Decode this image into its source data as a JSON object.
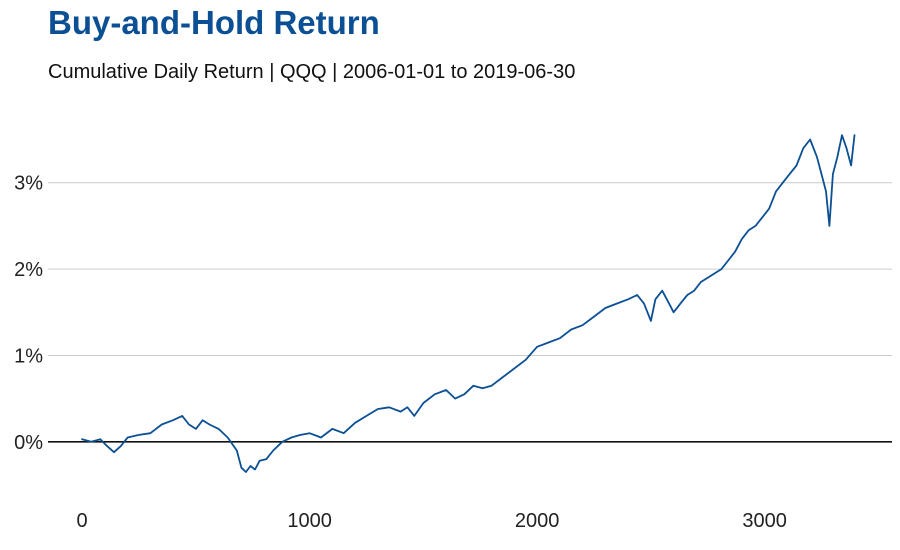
{
  "header": {
    "title": "Buy-and-Hold Return",
    "subtitle": "Cumulative Daily Return | QQQ | 2006-01-01 to 2019-06-30"
  },
  "colors": {
    "title": "#0b4f94",
    "line": "#0b4f94",
    "grid": "#cccccc",
    "zero_line": "#111111"
  },
  "chart_data": {
    "type": "line",
    "title": "Buy-and-Hold Return",
    "subtitle": "Cumulative Daily Return | QQQ | 2006-01-01 to 2019-06-30",
    "xlabel": "",
    "ylabel": "",
    "xlim": [
      -150,
      3560
    ],
    "ylim": [
      -0.5,
      3.9
    ],
    "x_ticks": [
      0,
      1000,
      2000,
      3000
    ],
    "x_tick_labels": [
      "0",
      "1000",
      "2000",
      "3000"
    ],
    "y_ticks": [
      0,
      1,
      2,
      3
    ],
    "y_tick_labels": [
      "0%",
      "1%",
      "2%",
      "3%"
    ],
    "grid": "horizontal",
    "series": [
      {
        "x": [
          0,
          40,
          80,
          110,
          140,
          170,
          200,
          250,
          300,
          350,
          400,
          440,
          470,
          500,
          530,
          560,
          600,
          640,
          680,
          700,
          720,
          740,
          760,
          780,
          810,
          840,
          880,
          920,
          960,
          1000,
          1050,
          1100,
          1150,
          1200,
          1250,
          1300,
          1350,
          1400,
          1430,
          1460,
          1500,
          1550,
          1600,
          1640,
          1680,
          1720,
          1760,
          1800,
          1850,
          1900,
          1950,
          2000,
          2050,
          2100,
          2150,
          2200,
          2250,
          2300,
          2350,
          2400,
          2440,
          2470,
          2500,
          2520,
          2550,
          2580,
          2600,
          2630,
          2660,
          2690,
          2720,
          2750,
          2780,
          2810,
          2840,
          2870,
          2900,
          2930,
          2960,
          2990,
          3020,
          3050,
          3080,
          3110,
          3140,
          3170,
          3200,
          3230,
          3250,
          3270,
          3285,
          3300,
          3320,
          3340,
          3360,
          3380,
          3395
        ],
        "values": [
          0.03,
          0.0,
          0.03,
          -0.05,
          -0.12,
          -0.05,
          0.05,
          0.08,
          0.1,
          0.2,
          0.25,
          0.3,
          0.2,
          0.15,
          0.25,
          0.2,
          0.15,
          0.05,
          -0.1,
          -0.3,
          -0.35,
          -0.28,
          -0.32,
          -0.22,
          -0.2,
          -0.1,
          0.0,
          0.05,
          0.08,
          0.1,
          0.05,
          0.15,
          0.1,
          0.22,
          0.3,
          0.38,
          0.4,
          0.35,
          0.4,
          0.3,
          0.45,
          0.55,
          0.6,
          0.5,
          0.55,
          0.65,
          0.62,
          0.65,
          0.75,
          0.85,
          0.95,
          1.1,
          1.15,
          1.2,
          1.3,
          1.35,
          1.45,
          1.55,
          1.6,
          1.65,
          1.7,
          1.6,
          1.4,
          1.65,
          1.75,
          1.6,
          1.5,
          1.6,
          1.7,
          1.75,
          1.85,
          1.9,
          1.95,
          2.0,
          2.1,
          2.2,
          2.35,
          2.45,
          2.5,
          2.6,
          2.7,
          2.9,
          3.0,
          3.1,
          3.2,
          3.4,
          3.5,
          3.3,
          3.1,
          2.9,
          2.5,
          3.1,
          3.3,
          3.55,
          3.4,
          3.2,
          3.55
        ]
      }
    ]
  }
}
